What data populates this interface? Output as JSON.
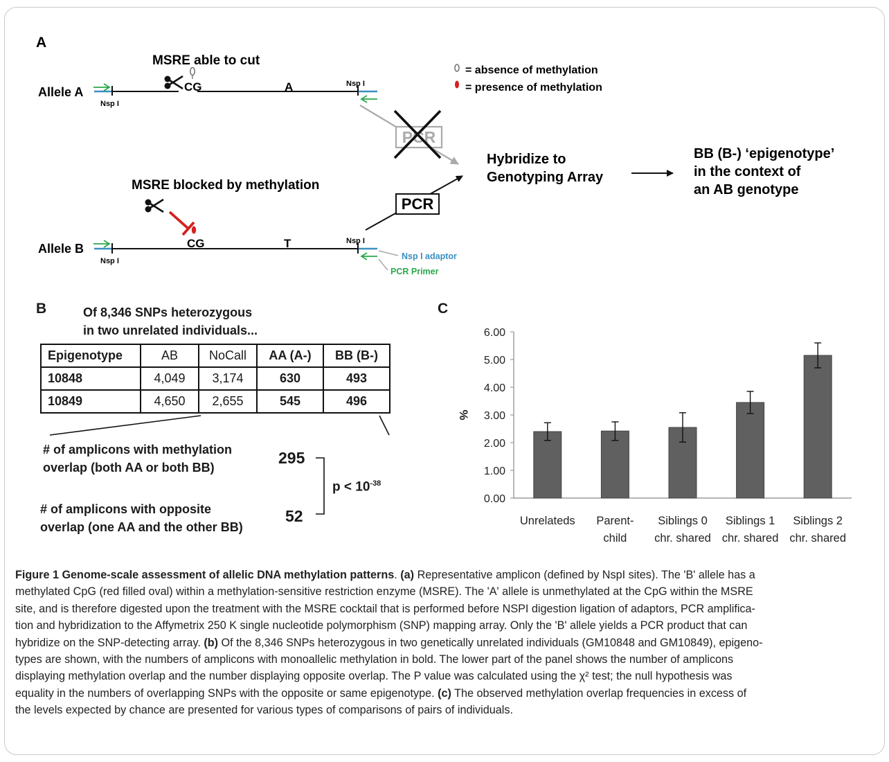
{
  "panel_a": {
    "label": "A",
    "allele_a": "Allele A",
    "allele_b": "Allele B",
    "nsp": "Nsp I",
    "msre_cut": "MSRE able to cut",
    "msre_blocked": "MSRE blocked by methylation",
    "cg": "CG",
    "snp_a": "A",
    "snp_b": "T",
    "legend_absence": "= absence of methylation",
    "legend_presence": "= presence of methylation",
    "pcr_crossed": "PCR",
    "pcr": "PCR",
    "hybridize_1": "Hybridize to",
    "hybridize_2": "Genotyping Array",
    "result_1": "BB (B-) ‘epigenotype’",
    "result_2": "in the context of",
    "result_3": "an AB genotype",
    "adaptor_label": "Nsp I adaptor",
    "primer_label": "PCR Primer",
    "colors": {
      "adaptor": "#3a8fc0",
      "primer": "#2aa84a",
      "methyl": "#d62020"
    }
  },
  "panel_b": {
    "label": "B",
    "heading_1": "Of 8,346 SNPs heterozygous",
    "heading_2": "in two unrelated individuals...",
    "headers": [
      "Epigenotype",
      "AB",
      "NoCall",
      "AA (A-)",
      "BB (B-)"
    ],
    "rows": [
      [
        "10848",
        "4,049",
        "3,174",
        "630",
        "493"
      ],
      [
        "10849",
        "4,650",
        "2,655",
        "545",
        "496"
      ]
    ],
    "overlap_label_1": "# of amplicons with methylation",
    "overlap_label_2": "overlap (both AA or both BB)",
    "overlap_value": "295",
    "opposite_label_1": "# of amplicons with opposite",
    "opposite_label_2": "overlap (one AA and the other BB)",
    "opposite_value": "52",
    "pvalue": "p < 10",
    "pvalue_exp": "-38"
  },
  "chart_data": {
    "type": "bar",
    "panel_label": "C",
    "ylabel": "%",
    "ylim": [
      0,
      6
    ],
    "yticks": [
      "0.00",
      "1.00",
      "2.00",
      "3.00",
      "4.00",
      "5.00",
      "6.00"
    ],
    "categories": [
      [
        "Unrelateds"
      ],
      [
        "Parent-",
        "child"
      ],
      [
        "Siblings 0",
        "chr. shared"
      ],
      [
        "Siblings 1",
        "chr. shared"
      ],
      [
        "Siblings 2",
        "chr. shared"
      ]
    ],
    "values": [
      2.4,
      2.42,
      2.55,
      3.45,
      5.15
    ],
    "err_low": [
      2.08,
      2.08,
      2.02,
      3.05,
      4.7
    ],
    "err_high": [
      2.72,
      2.75,
      3.08,
      3.85,
      5.6
    ],
    "bar_color": "#606060",
    "grid": false
  },
  "caption": {
    "title": "Figure 1 Genome-scale assessment of allelic DNA methylation patterns",
    "line_1": "Representative amplicon (defined by NspI sites). The 'B' allele has a",
    "line_2": "methylated CpG (red filled oval) within a methylation-sensitive restriction enzyme (MSRE). The 'A' allele is unmethylated at the CpG within the MSRE",
    "line_3": "site, and is therefore digested upon the treatment with the MSRE cocktail that is performed before NSPI digestion ligation of adaptors, PCR amplifica-",
    "line_4": "tion and hybridization to the Affymetrix 250 K single nucleotide polymorphism (SNP) mapping array. Only the 'B' allele yields a PCR product that can",
    "line_5": "hybridize on the SNP-detecting array.",
    "line_5_rest": "Of the 8,346 SNPs heterozygous in two genetically unrelated individuals (GM10848 and GM10849), epigeno-",
    "line_6": "types are shown, with the numbers of amplicons with monoallelic methylation in bold. The lower part of the panel shows the number of amplicons",
    "line_7": "displaying methylation overlap and the number displaying opposite overlap. The P value was calculated using the χ² test; the null hypothesis was",
    "line_8": "equality in the numbers of overlapping SNPs with the opposite or same epigenotype.",
    "line_8_rest": "The observed methylation overlap frequencies in excess of",
    "line_9": "the levels expected by chance are presented for various types of comparisons of pairs of individuals.",
    "tag_a": "(a)",
    "tag_b": "(b)",
    "tag_c": "(c)"
  }
}
